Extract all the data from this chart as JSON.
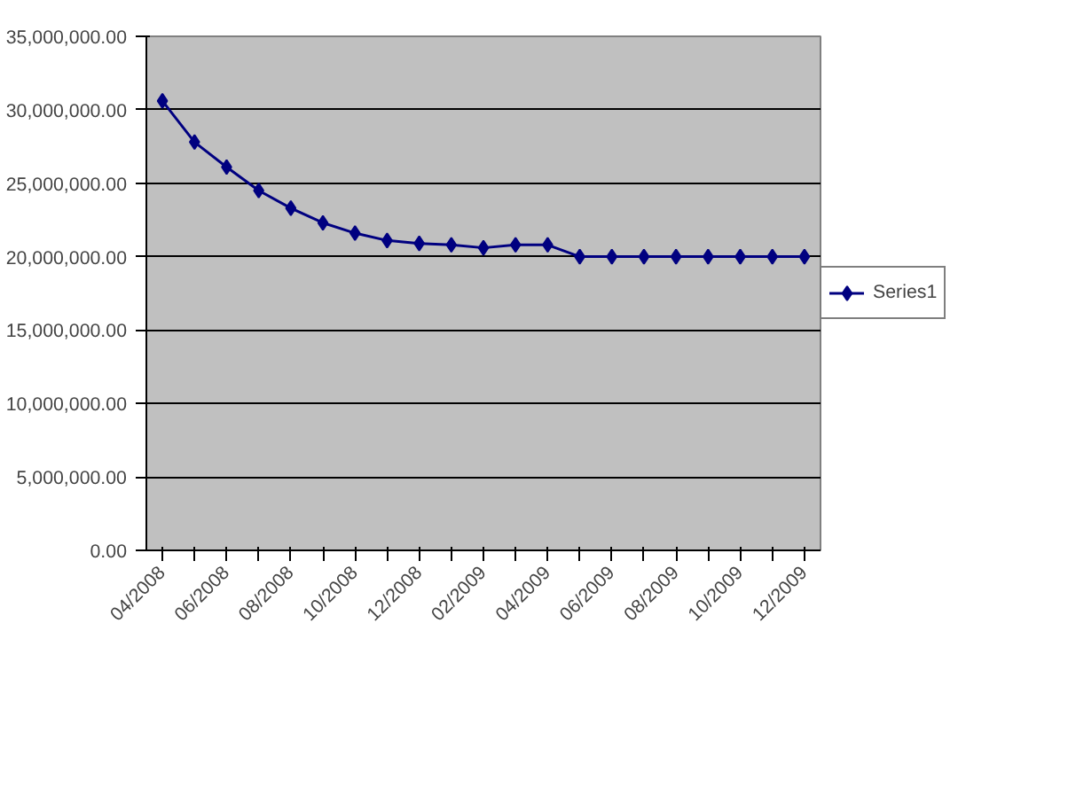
{
  "chart_data": {
    "type": "line",
    "categories": [
      "04/2008",
      null,
      "06/2008",
      null,
      "08/2008",
      null,
      "10/2008",
      null,
      "12/2008",
      null,
      "02/2009",
      null,
      "04/2009",
      null,
      "06/2009",
      null,
      "08/2009",
      null,
      "10/2009",
      null,
      "12/2009"
    ],
    "series": [
      {
        "name": "Series1",
        "color": "#000080",
        "values": [
          30600000,
          27800000,
          26100000,
          24500000,
          23300000,
          22300000,
          21600000,
          21100000,
          20900000,
          20800000,
          20600000,
          20800000,
          20800000,
          20000000,
          20000000,
          20000000,
          20000000,
          20000000,
          20000000,
          20000000,
          20000000
        ]
      }
    ],
    "ylim": [
      0,
      35000000
    ],
    "yticks": [
      {
        "value": 0,
        "label": "0.00"
      },
      {
        "value": 5000000,
        "label": "5,000,000.00"
      },
      {
        "value": 10000000,
        "label": "10,000,000.00"
      },
      {
        "value": 15000000,
        "label": "15,000,000.00"
      },
      {
        "value": 20000000,
        "label": "20,000,000.00"
      },
      {
        "value": 25000000,
        "label": "25,000,000.00"
      },
      {
        "value": 30000000,
        "label": "30,000,000.00"
      },
      {
        "value": 35000000,
        "label": "35,000,000.00"
      }
    ],
    "grid": "y",
    "legend": "right",
    "marker": "diamond",
    "line_style": "solid"
  }
}
